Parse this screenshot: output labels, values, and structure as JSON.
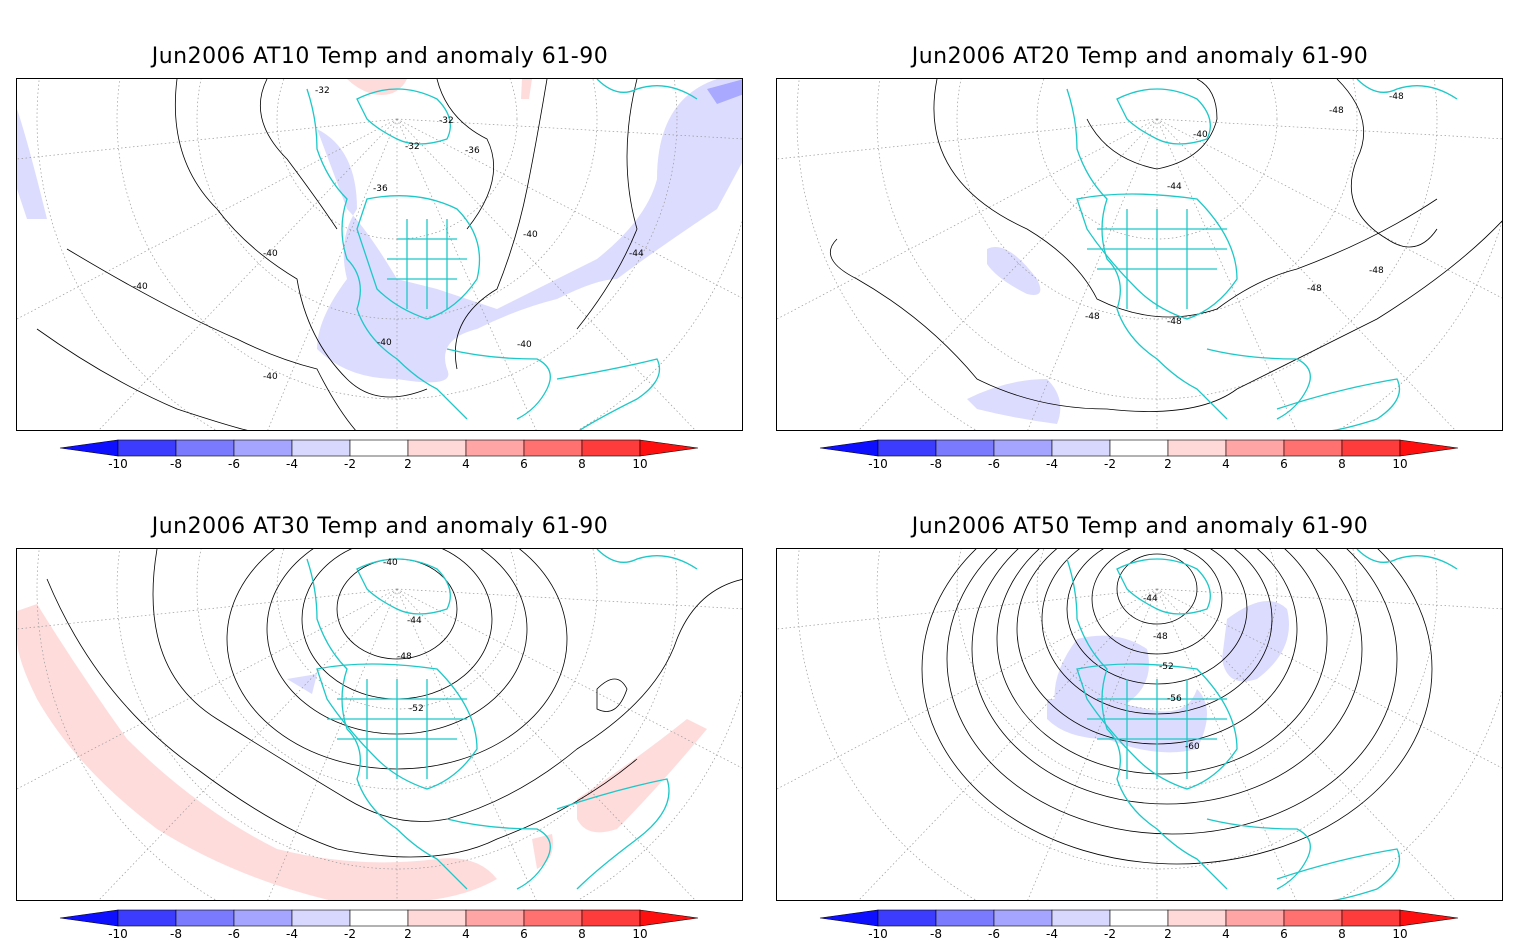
{
  "panels": [
    {
      "id": "at10",
      "title": "Jun2006 AT10 Temp and anomaly 61-90",
      "contour_labels": [
        "-32",
        "-32",
        "-32",
        "-36",
        "-36",
        "-40",
        "-40",
        "-40",
        "-40",
        "-40",
        "-40",
        "-44"
      ],
      "anomaly_sign": "negative"
    },
    {
      "id": "at20",
      "title": "Jun2006 AT20 Temp and anomaly 61-90",
      "contour_labels": [
        "-48",
        "-48",
        "-40",
        "-44",
        "-48",
        "-48",
        "-48",
        "-48"
      ],
      "anomaly_sign": "negative"
    },
    {
      "id": "at30",
      "title": "Jun2006 AT30 Temp and anomaly 61-90",
      "contour_labels": [
        "-40",
        "-44",
        "-48",
        "-52"
      ],
      "anomaly_sign": "positive"
    },
    {
      "id": "at50",
      "title": "Jun2006 AT50 Temp and anomaly 61-90",
      "contour_labels": [
        "-44",
        "-48",
        "-52",
        "-56",
        "-60"
      ],
      "anomaly_sign": "negative"
    }
  ],
  "colorbar": {
    "labels": [
      "-10",
      "-8",
      "-6",
      "-4",
      "-2",
      "2",
      "4",
      "6",
      "8",
      "10"
    ],
    "colors": [
      "#0f0fff",
      "#3c3cff",
      "#7a7aff",
      "#a5a5ff",
      "#d8d8ff",
      "#ffffff",
      "#ffd8d8",
      "#ffa5a5",
      "#ff7070",
      "#ff3c3c",
      "#ff1010"
    ]
  },
  "style": {
    "coast_color": "#1ec8c8",
    "neg_fill": "#dcdcff",
    "neg_fill2": "#a9a9ff",
    "pos_fill": "#ffdcdc"
  }
}
